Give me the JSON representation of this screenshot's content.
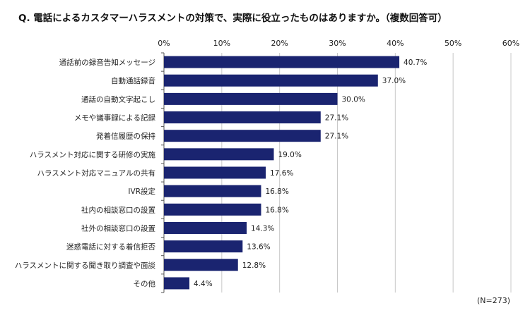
{
  "title": "Q. 電話によるカスタマーハラスメントの対策で、実際に役立ったものはありますか。（複数回答可）",
  "note": "(N=273)",
  "colors": {
    "bar": "#1a2470",
    "grid": "#c8c8c8",
    "axis": "#555555"
  },
  "chart_data": {
    "type": "bar",
    "orientation": "horizontal",
    "title": "Q. 電話によるカスタマーハラスメントの対策で、実際に役立ったものはありますか。（複数回答可）",
    "categories": [
      "通話前の録音告知メッセージ",
      "自動通話録音",
      "通話の自動文字起こし",
      "メモや議事録による記録",
      "発着信履歴の保持",
      "ハラスメント対応に関する研修の実施",
      "ハラスメント対応マニュアルの共有",
      "IVR設定",
      "社内の相談窓口の設置",
      "社外の相談窓口の設置",
      "迷惑電話に対する着信拒否",
      "ハラスメントに関する聞き取り調査や面談",
      "その他"
    ],
    "values": [
      40.7,
      37.0,
      30.0,
      27.1,
      27.1,
      19.0,
      17.6,
      16.8,
      16.8,
      14.3,
      13.6,
      12.8,
      4.4
    ],
    "value_labels": [
      "40.7%",
      "37.0%",
      "30.0%",
      "27.1%",
      "27.1%",
      "19.0%",
      "17.6%",
      "16.8%",
      "16.8%",
      "14.3%",
      "13.6%",
      "12.8%",
      "4.4%"
    ],
    "xlim": [
      0,
      60
    ],
    "ticks": [
      0,
      10,
      20,
      30,
      40,
      50,
      60
    ],
    "tick_labels": [
      "0%",
      "10%",
      "20%",
      "30%",
      "40%",
      "50%",
      "60%"
    ],
    "grid": true,
    "xlabel": "",
    "ylabel": ""
  }
}
